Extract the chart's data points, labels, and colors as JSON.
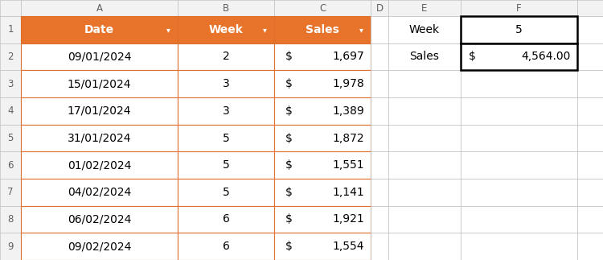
{
  "header_bg": "#E8732A",
  "header_text_color": "#FFFFFF",
  "grid_color_orange": "#E07030",
  "grid_color_gray": "#C0C0C0",
  "col_header_bg": "#F2F2F2",
  "col_header_text": "#606060",
  "table_data": [
    [
      "Date",
      "Week",
      "Sales"
    ],
    [
      "09/01/2024",
      "2",
      "1,697"
    ],
    [
      "15/01/2024",
      "3",
      "1,978"
    ],
    [
      "17/01/2024",
      "3",
      "1,389"
    ],
    [
      "31/01/2024",
      "5",
      "1,872"
    ],
    [
      "01/02/2024",
      "5",
      "1,551"
    ],
    [
      "04/02/2024",
      "5",
      "1,141"
    ],
    [
      "06/02/2024",
      "6",
      "1,921"
    ],
    [
      "09/02/2024",
      "6",
      "1,554"
    ]
  ],
  "side_label_1": "Week",
  "side_label_2": "Sales",
  "side_value_1": "5",
  "side_value_2": "$ 4,564.00",
  "fig_width": 7.5,
  "fig_height": 3.23,
  "dpi": 100
}
